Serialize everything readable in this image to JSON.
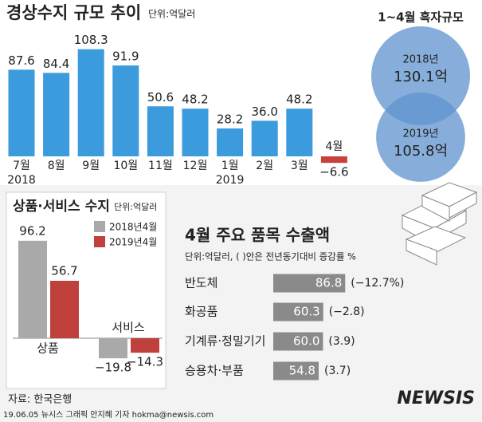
{
  "chart_data": [
    {
      "type": "bar",
      "title": "경상수지 규모 추이",
      "unit": "단위:억달러",
      "categories": [
        "7월",
        "8월",
        "9월",
        "10월",
        "11월",
        "12월",
        "1월",
        "2월",
        "3월",
        "4월"
      ],
      "year_labels": [
        "2018",
        null,
        null,
        null,
        null,
        null,
        "2019",
        null,
        null,
        null
      ],
      "values": [
        87.6,
        84.4,
        108.3,
        91.9,
        50.6,
        48.2,
        28.2,
        36.0,
        48.2,
        -6.6
      ],
      "value_labels": [
        "87.6",
        "84.4",
        "108.3",
        "91.9",
        "50.6",
        "48.2",
        "28.2",
        "36.0",
        "48.2",
        "−6.6"
      ],
      "color": "#3b9bdc",
      "negative_color": "#c7413d"
    },
    {
      "type": "venn",
      "title": "1~4월 흑자규모",
      "series": [
        {
          "name": "2018년",
          "color": "#5f93cf",
          "values": [
            130.1
          ],
          "value_labels": [
            "130.1억"
          ]
        },
        {
          "name": "2019년",
          "color": "#5f93cf",
          "values": [
            105.8
          ],
          "value_labels": [
            "105.8억"
          ]
        }
      ]
    },
    {
      "type": "grouped-bar",
      "title": "상품·서비스 수지",
      "unit": "단위:억달러",
      "categories": [
        "상품",
        "서비스"
      ],
      "series": [
        {
          "name": "2018년4월",
          "color": "#a9a9a9",
          "values": [
            96.2,
            -19.8
          ],
          "value_labels": [
            "96.2",
            "−19.8"
          ]
        },
        {
          "name": "2019년4월",
          "color": "#c0403c",
          "values": [
            56.7,
            -14.3
          ],
          "value_labels": [
            "56.7",
            "−14.3"
          ]
        }
      ]
    },
    {
      "type": "hbar",
      "title": "4월 주요 품목 수출액",
      "subtitle": "단위:억달러, ( )안은 전년동기대비 증감률 %",
      "categories": [
        "반도체",
        "화공품",
        "기계류·정밀기기",
        "승용차·부품"
      ],
      "values": [
        86.8,
        60.3,
        60.0,
        54.8
      ],
      "value_labels": [
        "86.8",
        "60.3",
        "60.0",
        "54.8"
      ],
      "notes": [
        "(−12.7%)",
        "(−2.8)",
        "(3.9)",
        "(3.7)"
      ],
      "color": "#8a8a8a"
    }
  ],
  "source": "자료: 한국은행",
  "credit": "19.06.05 뉴시스 그래픽 안지혜 기자 hokma@newsis.com",
  "logo": "NEWSIS"
}
